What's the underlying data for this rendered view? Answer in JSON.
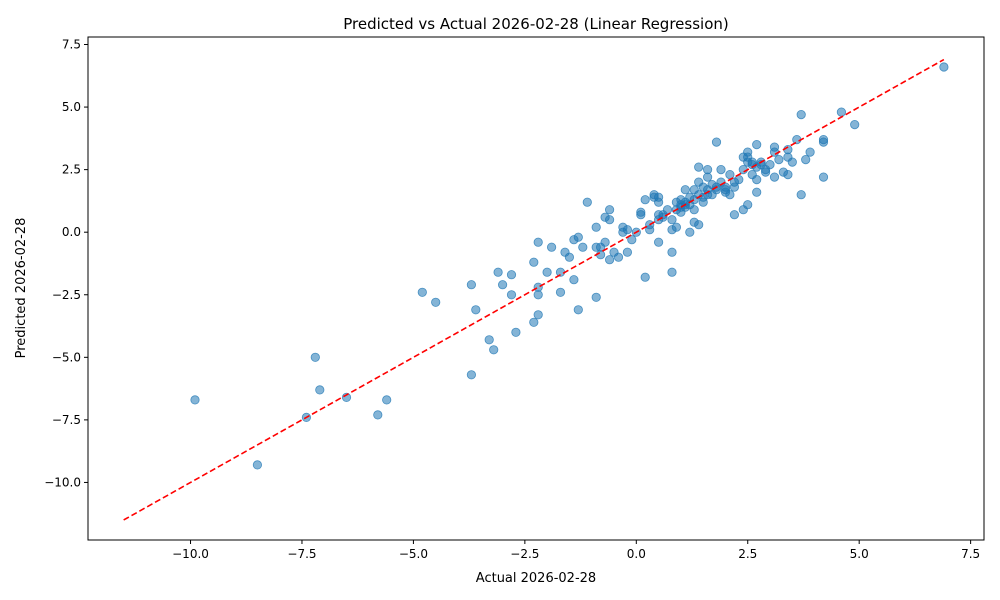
{
  "chart_data": {
    "type": "scatter",
    "title": "Predicted vs Actual 2026-02-28 (Linear Regression)",
    "xlabel": "Actual 2026-02-28",
    "ylabel": "Predicted 2026-02-28",
    "xlim": [
      -12.3,
      7.8
    ],
    "ylim": [
      -12.3,
      7.8
    ],
    "xticks": [
      -10.0,
      -7.5,
      -5.0,
      -2.5,
      0.0,
      2.5,
      5.0,
      7.5
    ],
    "yticks": [
      -10.0,
      -7.5,
      -5.0,
      -2.5,
      0.0,
      2.5,
      5.0,
      7.5
    ],
    "grid": false,
    "point_color": "#1f77b4",
    "reference_line": {
      "color": "#ff0000",
      "style": "dashed",
      "from": [
        -11.5,
        -11.5
      ],
      "to": [
        6.9,
        6.9
      ]
    },
    "points": [
      [
        -9.9,
        -6.7
      ],
      [
        -8.5,
        -9.3
      ],
      [
        -7.4,
        -7.4
      ],
      [
        -7.2,
        -5.0
      ],
      [
        -7.1,
        -6.3
      ],
      [
        -6.5,
        -6.6
      ],
      [
        -5.8,
        -7.3
      ],
      [
        -5.6,
        -6.7
      ],
      [
        -4.8,
        -2.4
      ],
      [
        -4.5,
        -2.8
      ],
      [
        -3.7,
        -2.1
      ],
      [
        -3.7,
        -5.7
      ],
      [
        -3.6,
        -3.1
      ],
      [
        -3.3,
        -4.3
      ],
      [
        -3.2,
        -4.7
      ],
      [
        -3.1,
        -1.6
      ],
      [
        -3.0,
        -2.1
      ],
      [
        -2.8,
        -1.7
      ],
      [
        -2.8,
        -2.5
      ],
      [
        -2.7,
        -4.0
      ],
      [
        -2.3,
        -1.2
      ],
      [
        -2.3,
        -3.6
      ],
      [
        -2.2,
        -0.4
      ],
      [
        -2.2,
        -2.2
      ],
      [
        -2.2,
        -2.5
      ],
      [
        -2.2,
        -3.3
      ],
      [
        -2.0,
        -1.6
      ],
      [
        -1.9,
        -0.6
      ],
      [
        -1.7,
        -1.6
      ],
      [
        -1.7,
        -2.4
      ],
      [
        -1.6,
        -0.8
      ],
      [
        -1.5,
        -1.0
      ],
      [
        -1.4,
        -0.3
      ],
      [
        -1.4,
        -1.9
      ],
      [
        -1.3,
        -0.2
      ],
      [
        -1.3,
        -3.1
      ],
      [
        -1.2,
        -0.6
      ],
      [
        -1.1,
        1.2
      ],
      [
        -0.9,
        0.2
      ],
      [
        -0.9,
        -0.6
      ],
      [
        -0.9,
        -2.6
      ],
      [
        -0.8,
        -0.6
      ],
      [
        -0.8,
        -0.9
      ],
      [
        -0.7,
        0.6
      ],
      [
        -0.7,
        -0.4
      ],
      [
        -0.6,
        0.9
      ],
      [
        -0.6,
        0.5
      ],
      [
        -0.6,
        -1.1
      ],
      [
        -0.5,
        -0.8
      ],
      [
        -0.4,
        -1.0
      ],
      [
        -0.3,
        0.2
      ],
      [
        -0.3,
        0.0
      ],
      [
        -0.2,
        0.1
      ],
      [
        -0.2,
        -0.8
      ],
      [
        -0.1,
        -0.3
      ],
      [
        0.0,
        0.0
      ],
      [
        0.1,
        0.8
      ],
      [
        0.2,
        1.3
      ],
      [
        0.2,
        -1.8
      ],
      [
        0.3,
        0.3
      ],
      [
        0.3,
        0.1
      ],
      [
        0.4,
        1.5
      ],
      [
        0.5,
        1.4
      ],
      [
        0.5,
        1.2
      ],
      [
        0.5,
        0.7
      ],
      [
        0.5,
        0.5
      ],
      [
        0.5,
        -0.4
      ],
      [
        0.6,
        0.7
      ],
      [
        0.7,
        0.9
      ],
      [
        0.8,
        0.5
      ],
      [
        0.8,
        0.1
      ],
      [
        0.8,
        -0.8
      ],
      [
        0.8,
        -1.6
      ],
      [
        0.9,
        1.2
      ],
      [
        0.9,
        0.9
      ],
      [
        0.9,
        0.2
      ],
      [
        1.0,
        1.3
      ],
      [
        1.0,
        1.0
      ],
      [
        1.0,
        0.8
      ],
      [
        1.1,
        1.7
      ],
      [
        1.1,
        1.2
      ],
      [
        1.1,
        1.0
      ],
      [
        1.2,
        1.4
      ],
      [
        1.2,
        1.1
      ],
      [
        1.2,
        0.0
      ],
      [
        1.3,
        1.7
      ],
      [
        1.3,
        1.3
      ],
      [
        1.3,
        0.9
      ],
      [
        1.3,
        0.4
      ],
      [
        1.4,
        2.6
      ],
      [
        1.4,
        2.0
      ],
      [
        1.4,
        1.5
      ],
      [
        1.4,
        0.3
      ],
      [
        1.5,
        1.8
      ],
      [
        1.5,
        1.2
      ],
      [
        1.6,
        2.5
      ],
      [
        1.6,
        2.2
      ],
      [
        1.6,
        1.7
      ],
      [
        1.7,
        1.9
      ],
      [
        1.7,
        1.5
      ],
      [
        1.8,
        3.6
      ],
      [
        1.8,
        1.8
      ],
      [
        1.9,
        2.5
      ],
      [
        1.9,
        2.0
      ],
      [
        2.0,
        1.8
      ],
      [
        2.0,
        1.6
      ],
      [
        2.1,
        2.3
      ],
      [
        2.1,
        1.5
      ],
      [
        2.2,
        1.8
      ],
      [
        2.2,
        0.7
      ],
      [
        2.3,
        2.1
      ],
      [
        2.4,
        3.0
      ],
      [
        2.4,
        2.5
      ],
      [
        2.4,
        0.9
      ],
      [
        2.5,
        3.2
      ],
      [
        2.5,
        2.8
      ],
      [
        2.5,
        1.1
      ],
      [
        2.6,
        2.8
      ],
      [
        2.6,
        2.3
      ],
      [
        2.7,
        3.5
      ],
      [
        2.7,
        2.6
      ],
      [
        2.7,
        2.1
      ],
      [
        2.7,
        1.6
      ],
      [
        2.8,
        2.8
      ],
      [
        2.9,
        2.4
      ],
      [
        3.0,
        2.7
      ],
      [
        3.1,
        3.4
      ],
      [
        3.1,
        3.2
      ],
      [
        3.1,
        2.2
      ],
      [
        3.2,
        2.9
      ],
      [
        3.3,
        2.4
      ],
      [
        3.4,
        3.3
      ],
      [
        3.4,
        2.3
      ],
      [
        3.5,
        2.8
      ],
      [
        3.6,
        3.7
      ],
      [
        3.7,
        4.7
      ],
      [
        3.7,
        1.5
      ],
      [
        3.8,
        2.9
      ],
      [
        3.9,
        3.2
      ],
      [
        4.2,
        3.7
      ],
      [
        4.2,
        2.2
      ],
      [
        4.6,
        4.8
      ],
      [
        4.9,
        4.3
      ],
      [
        6.9,
        6.6
      ],
      [
        2.5,
        3.0
      ],
      [
        1.6,
        1.5
      ],
      [
        2.9,
        2.5
      ],
      [
        1.1,
        1.1
      ],
      [
        2.2,
        2.0
      ],
      [
        0.4,
        1.4
      ],
      [
        1.8,
        1.7
      ],
      [
        0.6,
        0.6
      ],
      [
        1.0,
        1.1
      ],
      [
        2.6,
        2.7
      ],
      [
        3.4,
        3.0
      ],
      [
        1.5,
        1.4
      ],
      [
        2.0,
        1.7
      ],
      [
        0.1,
        0.7
      ],
      [
        4.2,
        3.6
      ],
      [
        2.8,
        2.7
      ]
    ]
  }
}
